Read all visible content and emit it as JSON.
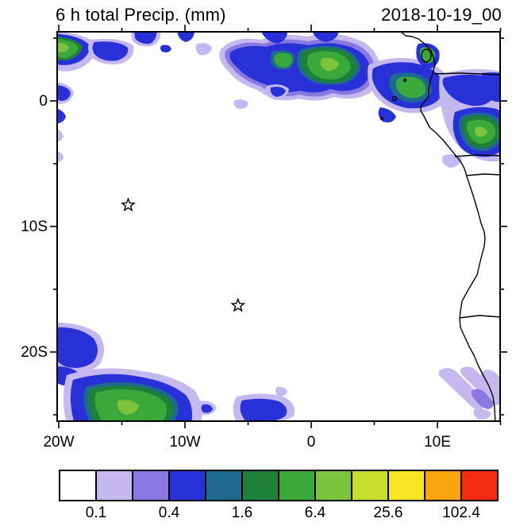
{
  "header": {
    "title": "6 h total Precip. (mm)",
    "date": "2018-10-19_00"
  },
  "axes": {
    "lon_ticks": [
      {
        "value": -20,
        "label": "20W"
      },
      {
        "value": -15,
        "label": ""
      },
      {
        "value": -10,
        "label": "10W"
      },
      {
        "value": -5,
        "label": ""
      },
      {
        "value": 0,
        "label": "0"
      },
      {
        "value": 5,
        "label": ""
      },
      {
        "value": 10,
        "label": "10E"
      },
      {
        "value": 15,
        "label": ""
      }
    ],
    "lat_ticks": [
      {
        "value": 5,
        "label": ""
      },
      {
        "value": 0,
        "label": "0"
      },
      {
        "value": -5,
        "label": ""
      },
      {
        "value": -10,
        "label": "10S"
      },
      {
        "value": -15,
        "label": ""
      },
      {
        "value": -20,
        "label": "20S"
      },
      {
        "value": -25,
        "label": ""
      }
    ]
  },
  "colorbar": {
    "units": "mm",
    "colors": [
      "#FFFFFF",
      "#C4B8EE",
      "#8878E0",
      "#2830D8",
      "#1E6A8E",
      "#1F8038",
      "#3AA83A",
      "#7CC43C",
      "#C8DE2C",
      "#F8E420",
      "#FBA40E",
      "#F52A0E"
    ],
    "boundaries": [
      0.1,
      0.2,
      0.4,
      0.8,
      1.6,
      3.2,
      6.4,
      12.8,
      25.6,
      51.2,
      102.4
    ],
    "tick_labels": [
      "0.1",
      "0.4",
      "1.6",
      "6.4",
      "25.6",
      "102.4"
    ]
  },
  "chart_data": {
    "type": "heatmap",
    "title": "6 h total Precip. (mm)",
    "valid_time": "2018-10-19_00",
    "projection": "lat-lon over eastern tropical/south Atlantic and SW Africa",
    "lon_range": [
      -20.1,
      15.0
    ],
    "lat_range": [
      -25.5,
      5.5
    ],
    "units": "mm",
    "contour_levels": [
      0.1,
      0.2,
      0.4,
      0.8,
      1.6,
      3.2,
      6.4,
      12.8,
      25.6,
      51.2,
      102.4
    ],
    "markers": [
      {
        "type": "star",
        "lon": -14.5,
        "lat": -8.3
      },
      {
        "type": "star",
        "lon": -5.8,
        "lat": -16.3
      }
    ],
    "precip_regions": [
      {
        "region": "northwest corner near 5N 19W",
        "peak_range_mm": "3.2-12.8"
      },
      {
        "region": "ITCZ band along 2-5N from 6W to 7E",
        "peak_range_mm": "6.4-25.6"
      },
      {
        "region": "Gulf of Guinea / Gabon-Congo coast 9E-15E, 4N-5S",
        "peak_range_mm": "6.4-25.6"
      },
      {
        "region": "west edge 1S-4S near 20W",
        "peak_range_mm": "0.4-0.8"
      },
      {
        "region": "southwest corner 21S-25.5S, 14W-20W",
        "peak_range_mm": "6.4-25.6"
      },
      {
        "region": "bottom edge near 25S, 2W-6W",
        "peak_range_mm": "0.4-1.6"
      },
      {
        "region": "Namibia coast streaks 21S-25S near 13E-15E",
        "peak_range_mm": "0.1-0.4"
      }
    ]
  }
}
